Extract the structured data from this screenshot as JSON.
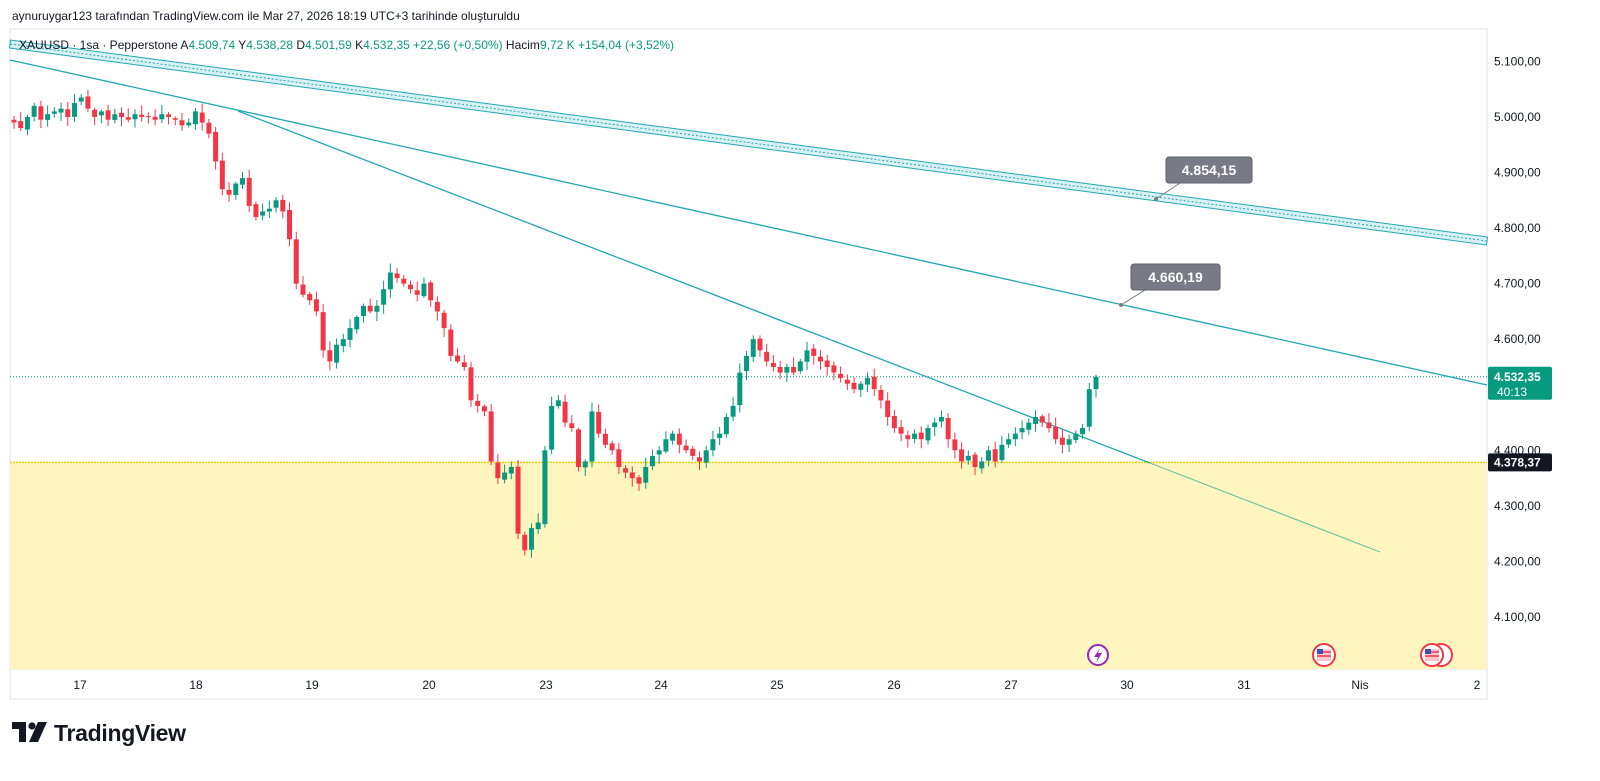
{
  "caption": "aynuruygar123 tarafından TradingView.com ile Mar 27, 2026 18:19 UTC+3 tarihinde oluşturuldu",
  "legend": {
    "symbol": "XAUUSD · 1sa · Pepperstone",
    "open_label": "A",
    "open": "4.509,74",
    "high_label": "Y",
    "high": "4.538,28",
    "low_label": "D",
    "low": "4.501,59",
    "close_label": "K",
    "close": "4.532,35",
    "change": "+22,56 (+0,50%)",
    "volume_label": "Hacim",
    "volume": "9,72 K",
    "volume_change": "+154,04 (+3,52%)"
  },
  "brand": "TradingView",
  "colors": {
    "up": "#089981",
    "down": "#f23645",
    "trendline": "#22a6b3",
    "zone_fill": "#fff6bf",
    "zone_line": "#f0d000",
    "callout": "#787b86"
  },
  "chart_data": {
    "type": "candlestick",
    "y_range": [
      4020,
      5140
    ],
    "y_ticks": [
      4100,
      4200,
      4300,
      4400,
      4600,
      4700,
      4800,
      4900,
      5000,
      5100
    ],
    "y_tick_labels": [
      "4.100,00",
      "4.200,00",
      "4.300,00",
      "4.400,00",
      "4.600,00",
      "4.700,00",
      "4.800,00",
      "4.900,00",
      "5.000,00",
      "5.100,00"
    ],
    "x_labels": [
      "17",
      "18",
      "19",
      "20",
      "23",
      "24",
      "25",
      "26",
      "27",
      "30",
      "31",
      "Nis",
      "2"
    ],
    "last_price": "4.532,35",
    "last_price_value": 4532.35,
    "countdown": "40:13",
    "support_level": "4.378,37",
    "support_level_value": 4378.37,
    "callouts": [
      {
        "label": "4.854,15",
        "value": 4854.15
      },
      {
        "label": "4.660,19",
        "value": 4660.19
      }
    ],
    "closes": [
      4990,
      4980,
      5000,
      5020,
      4995,
      5005,
      5010,
      5015,
      5000,
      5025,
      5035,
      5015,
      5000,
      5010,
      4995,
      5005,
      5000,
      4995,
      5005,
      5000,
      5000,
      4995,
      5005,
      5000,
      4995,
      4985,
      4990,
      5010,
      4990,
      4970,
      4920,
      4870,
      4860,
      4880,
      4890,
      4840,
      4820,
      4830,
      4835,
      4850,
      4830,
      4780,
      4700,
      4680,
      4670,
      4650,
      4580,
      4560,
      4590,
      4600,
      4620,
      4640,
      4660,
      4650,
      4660,
      4690,
      4720,
      4710,
      4700,
      4690,
      4680,
      4700,
      4670,
      4650,
      4620,
      4570,
      4560,
      4550,
      4490,
      4480,
      4470,
      4380,
      4350,
      4360,
      4370,
      4250,
      4220,
      4260,
      4270,
      4400,
      4480,
      4490,
      4450,
      4440,
      4370,
      4380,
      4470,
      4430,
      4410,
      4400,
      4370,
      4360,
      4350,
      4340,
      4370,
      4390,
      4400,
      4420,
      4430,
      4410,
      4400,
      4390,
      4380,
      4400,
      4420,
      4430,
      4460,
      4480,
      4540,
      4570,
      4600,
      4580,
      4560,
      4550,
      4540,
      4550,
      4540,
      4560,
      4580,
      4570,
      4560,
      4550,
      4540,
      4530,
      4520,
      4510,
      4520,
      4530,
      4510,
      4490,
      4460,
      4440,
      4430,
      4420,
      4430,
      4420,
      4440,
      4450,
      4460,
      4420,
      4400,
      4380,
      4390,
      4370,
      4380,
      4400,
      4380,
      4410,
      4420,
      4430,
      4440,
      4450,
      4460,
      4450,
      4440,
      4420,
      4410,
      4420,
      4430,
      4440,
      4510,
      4532.35
    ]
  }
}
